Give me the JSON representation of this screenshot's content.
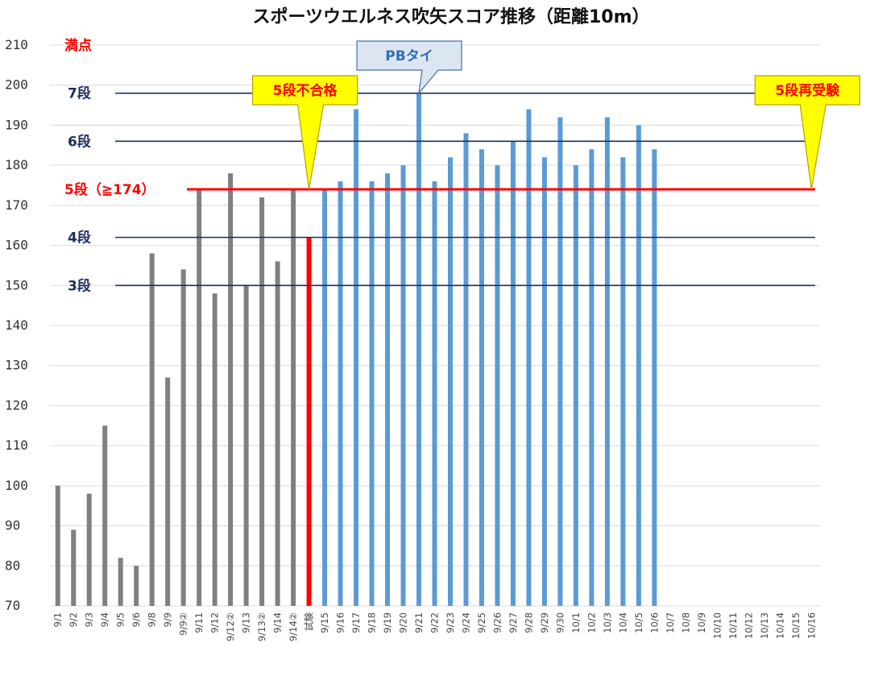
{
  "chart_data": {
    "type": "bar",
    "title": "スポーツウエルネス吹矢スコア推移（距離10m）",
    "ylim": [
      70,
      210
    ],
    "yticks": [
      70,
      80,
      90,
      100,
      110,
      120,
      130,
      140,
      150,
      160,
      170,
      180,
      190,
      200,
      210
    ],
    "grid": true,
    "categories": [
      "9/1",
      "9/2",
      "9/3",
      "9/4",
      "9/5",
      "9/6",
      "9/8",
      "9/9",
      "9/9②",
      "9/11",
      "9/12",
      "9/12②",
      "9/13",
      "9/13②",
      "9/14",
      "9/14②",
      "試験",
      "9/15",
      "9/16",
      "9/17",
      "9/18",
      "9/19",
      "9/20",
      "9/21",
      "9/22",
      "9/23",
      "9/24",
      "9/25",
      "9/26",
      "9/27",
      "9/28",
      "9/29",
      "9/30",
      "10/1",
      "10/2",
      "10/3",
      "10/4",
      "10/5",
      "10/6",
      "10/7",
      "10/8",
      "10/9",
      "10/10",
      "10/11",
      "10/12",
      "10/13",
      "10/14",
      "10/15",
      "10/16"
    ],
    "values": [
      100,
      89,
      98,
      115,
      82,
      80,
      158,
      127,
      154,
      174,
      148,
      178,
      150,
      172,
      156,
      174,
      162,
      174,
      176,
      194,
      176,
      178,
      180,
      198,
      176,
      182,
      188,
      184,
      180,
      186,
      194,
      182,
      192,
      180,
      184,
      192,
      182,
      190,
      184,
      null,
      null,
      null,
      null,
      null,
      null,
      null,
      null,
      null,
      null
    ],
    "bar_groups": [
      {
        "from": 0,
        "to": 15,
        "color": "#808080"
      },
      {
        "from": 16,
        "to": 16,
        "color": "#ff0000"
      },
      {
        "from": 17,
        "to": 38,
        "color": "#5b9bd5"
      }
    ],
    "reference_lines": [
      {
        "value": 210,
        "label": "満点",
        "color": "#ff0000",
        "line": false
      },
      {
        "value": 198,
        "label": "7段",
        "color": "#1f2d5c",
        "line": true
      },
      {
        "value": 186,
        "label": "6段",
        "color": "#1f2d5c",
        "line": true
      },
      {
        "value": 174,
        "label": "5段（≧174）",
        "color": "#ff0000",
        "line": true
      },
      {
        "value": 162,
        "label": "4段",
        "color": "#1f2d5c",
        "line": true
      },
      {
        "value": 150,
        "label": "3段",
        "color": "#1f2d5c",
        "line": true
      }
    ],
    "annotations": [
      {
        "text": "PBタイ",
        "category_index": 23,
        "value": 198,
        "style": "blue"
      },
      {
        "text": "5段不合格",
        "category_index": 16,
        "value": 174,
        "style": "yellow"
      },
      {
        "text": "5段再受験",
        "category_index": 48,
        "value": 174,
        "style": "yellow"
      }
    ]
  }
}
